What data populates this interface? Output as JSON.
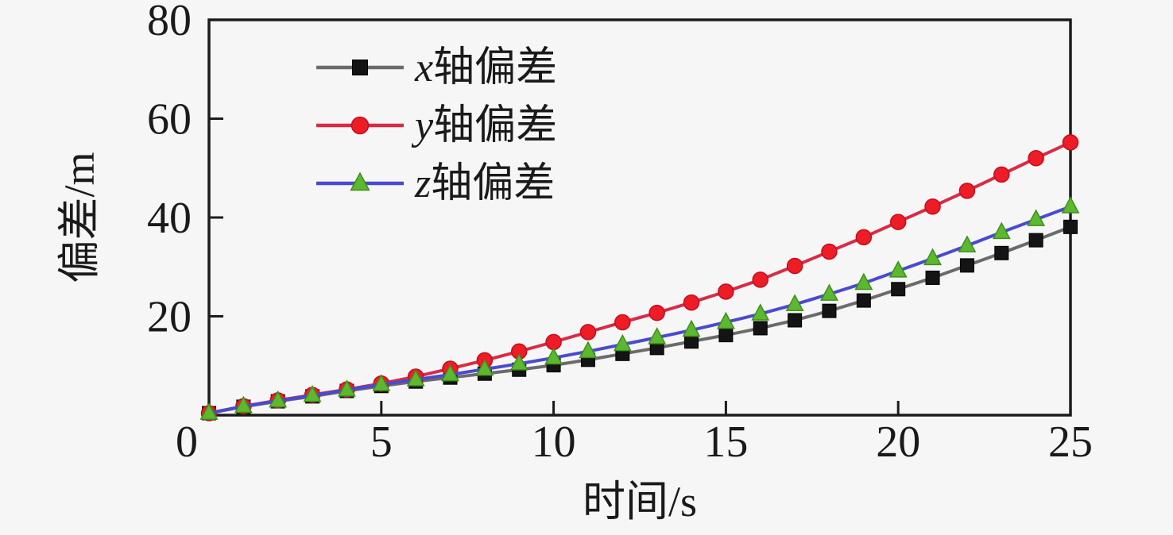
{
  "chart_data": {
    "type": "line",
    "title": "",
    "xlabel": "时间/s",
    "ylabel": "偏差/m",
    "xlim": [
      0,
      25
    ],
    "ylim": [
      0,
      80
    ],
    "xticks": [
      0,
      5,
      10,
      15,
      20,
      25
    ],
    "ytick_labels": [
      20,
      40,
      60,
      80
    ],
    "ytick_marks": [
      20,
      40,
      60
    ],
    "grid": false,
    "legend_position": "upper-left",
    "x": [
      0,
      1,
      2,
      3,
      4,
      5,
      6,
      7,
      8,
      9,
      10,
      11,
      12,
      13,
      14,
      15,
      16,
      17,
      18,
      19,
      20,
      21,
      22,
      23,
      24,
      25
    ],
    "series": [
      {
        "name": "x轴偏差",
        "legend_var": "x",
        "legend_suffix": "轴偏差",
        "marker": "square",
        "marker_color": "#141414",
        "marker_edge": "#000000",
        "line_color": "#6b6b6b",
        "values": [
          0.4,
          1.7,
          2.8,
          3.8,
          4.9,
          5.9,
          6.8,
          7.6,
          8.4,
          9.2,
          10.1,
          11.2,
          12.4,
          13.6,
          14.9,
          16.2,
          17.6,
          19.2,
          21.1,
          23.2,
          25.5,
          27.8,
          30.3,
          32.8,
          35.4,
          38.1
        ]
      },
      {
        "name": "y轴偏差",
        "legend_var": "y",
        "legend_suffix": "轴偏差",
        "marker": "circle",
        "marker_color": "#ee1c25",
        "marker_edge": "#c40d20",
        "line_color": "#d92b45",
        "values": [
          0.4,
          1.8,
          3.0,
          4.1,
          5.2,
          6.4,
          7.8,
          9.4,
          11.1,
          12.9,
          14.8,
          16.8,
          18.8,
          20.7,
          22.8,
          25.0,
          27.4,
          30.2,
          33.1,
          36.0,
          39.1,
          42.2,
          45.4,
          48.7,
          52.0,
          55.2
        ]
      },
      {
        "name": "z轴偏差",
        "legend_var": "z",
        "legend_suffix": "轴偏差",
        "marker": "triangle",
        "marker_color": "#5cb82e",
        "marker_edge": "#3f8f1b",
        "line_color": "#4a4ad0",
        "values": [
          0.4,
          1.8,
          2.9,
          4.0,
          5.1,
          6.2,
          7.2,
          8.2,
          9.3,
          10.4,
          11.6,
          12.9,
          14.3,
          15.7,
          17.2,
          18.8,
          20.5,
          22.4,
          24.5,
          26.7,
          29.2,
          31.7,
          34.3,
          37.0,
          39.6,
          42.2
        ]
      }
    ]
  },
  "colors": {
    "background": "#f6f6f6",
    "axis": "#1c1c1c",
    "tick_label": "#1a1a1a"
  }
}
